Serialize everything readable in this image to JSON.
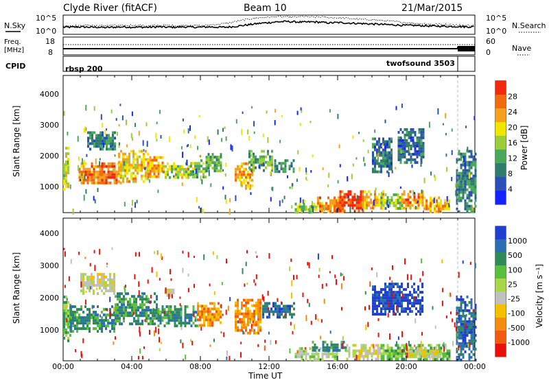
{
  "header": {
    "title": "Clyde River (fitACF)",
    "beam": "Beam 10",
    "date": "21/Mar/2015"
  },
  "chart_data": [
    {
      "type": "line",
      "panel": "noise",
      "left_label": "N.Sky",
      "right_label": "N.Search",
      "ytick_labels": [
        "10^5",
        "10^0"
      ],
      "right_ytick_labels": [
        "10^5",
        "10^0"
      ],
      "x_hours": [
        0,
        0.5,
        1,
        1.5,
        2,
        2.5,
        3,
        3.5,
        4,
        4.5,
        5,
        5.5,
        6,
        6.5,
        7,
        7.5,
        8,
        8.5,
        9,
        9.5,
        10,
        10.5,
        11,
        11.5,
        12,
        12.5,
        13,
        13.5,
        14,
        14.5,
        15,
        15.5,
        16,
        16.5,
        17,
        17.5,
        18,
        18.5,
        19,
        19.5,
        20,
        20.5,
        21,
        21.5,
        22,
        22.5,
        23,
        23.5,
        24
      ],
      "series": [
        {
          "role": "sky",
          "values_log": [
            1.8,
            1.8,
            1.9,
            1.8,
            1.8,
            1.7,
            1.8,
            1.9,
            1.8,
            1.8,
            1.8,
            1.9,
            1.8,
            1.8,
            1.9,
            1.8,
            1.8,
            1.9,
            1.8,
            1.8,
            2.0,
            2.3,
            2.6,
            2.9,
            3.1,
            3.3,
            3.4,
            3.3,
            3.2,
            3.3,
            3.2,
            3.0,
            3.1,
            3.0,
            2.9,
            2.8,
            2.7,
            2.6,
            2.5,
            2.4,
            2.3,
            2.3,
            2.2,
            2.1,
            2.1,
            2.0,
            2.0,
            1.9,
            1.9
          ]
        },
        {
          "role": "search",
          "values_log": [
            2.2,
            2.3,
            2.2,
            2.4,
            2.2,
            2.3,
            2.3,
            2.2,
            2.4,
            2.3,
            2.2,
            2.3,
            2.3,
            2.2,
            2.3,
            2.4,
            2.2,
            2.4,
            2.6,
            2.9,
            3.3,
            3.8,
            4.2,
            4.5,
            4.6,
            4.8,
            4.7,
            4.6,
            4.8,
            4.6,
            4.7,
            4.5,
            4.4,
            4.3,
            4.1,
            4.0,
            3.9,
            3.7,
            3.5,
            3.3,
            3.1,
            2.9,
            2.8,
            2.6,
            2.6,
            2.5,
            2.4,
            2.3,
            2.3
          ]
        }
      ],
      "ylim": [
        0,
        5
      ]
    },
    {
      "type": "line",
      "panel": "frequency",
      "left_label": "Freq.",
      "left_unit": "[MHz]",
      "left_ticks": [
        "18",
        "8"
      ],
      "right_label": "Nave",
      "right_ticks": [
        "60",
        "0"
      ],
      "series": [
        {
          "role": "freq_mhz",
          "x": [
            0,
            22.8,
            22.8,
            24
          ],
          "values": [
            10.2,
            10.2,
            10.8,
            10.8
          ]
        },
        {
          "role": "nave",
          "x": [
            0,
            24
          ],
          "values": [
            30,
            30
          ]
        }
      ]
    },
    {
      "type": "table",
      "panel": "cpid",
      "label": "CPID",
      "segments": [
        {
          "name": "rbsp 200",
          "start": 0,
          "end": 22.8
        },
        {
          "name": "twofsound 3503",
          "start": 22.8,
          "end": 24
        }
      ]
    },
    {
      "type": "heatmap",
      "panel": "power",
      "ylabel": "Slant Range [km]",
      "ylim": [
        180,
        4600
      ],
      "yticks": [
        1000,
        2000,
        3000,
        4000
      ],
      "colorbar": {
        "label": "Power [dB]",
        "ticks": [
          4,
          8,
          12,
          16,
          20,
          24,
          28
        ],
        "colors": [
          "#1423ff",
          "#2a4fb6",
          "#2e7d6b",
          "#4aa85a",
          "#9ccc3a",
          "#f2e600",
          "#f5a020",
          "#f26a10",
          "#f02a0a"
        ]
      },
      "blobs": [
        {
          "t0": 0.0,
          "t1": 0.3,
          "r0": 900,
          "r1": 2300,
          "v": 18
        },
        {
          "t0": 0.9,
          "t1": 2.4,
          "r0": 1100,
          "r1": 1800,
          "v": 24
        },
        {
          "t0": 2.1,
          "t1": 3.4,
          "r0": 1100,
          "r1": 1800,
          "v": 26
        },
        {
          "t0": 3.2,
          "t1": 5.0,
          "r0": 1200,
          "r1": 2200,
          "v": 20
        },
        {
          "t0": 4.9,
          "t1": 5.8,
          "r0": 1300,
          "r1": 2000,
          "v": 22
        },
        {
          "t0": 5.8,
          "t1": 7.4,
          "r0": 1300,
          "r1": 1800,
          "v": 16
        },
        {
          "t0": 7.4,
          "t1": 8.3,
          "r0": 1300,
          "r1": 1900,
          "v": 14
        },
        {
          "t0": 8.3,
          "t1": 9.2,
          "r0": 1500,
          "r1": 2100,
          "v": 12
        },
        {
          "t0": 1.4,
          "t1": 3.0,
          "r0": 2200,
          "r1": 2800,
          "v": 8
        },
        {
          "t0": 10.0,
          "t1": 11.0,
          "r0": 1000,
          "r1": 1800,
          "v": 22
        },
        {
          "t0": 10.8,
          "t1": 12.2,
          "r0": 1500,
          "r1": 2200,
          "v": 12
        },
        {
          "t0": 12.3,
          "t1": 13.5,
          "r0": 1500,
          "r1": 1900,
          "v": 8
        },
        {
          "t0": 13.5,
          "t1": 14.8,
          "r0": 200,
          "r1": 500,
          "v": 14
        },
        {
          "t0": 14.8,
          "t1": 16.3,
          "r0": 200,
          "r1": 700,
          "v": 24
        },
        {
          "t0": 16.1,
          "t1": 17.5,
          "r0": 200,
          "r1": 900,
          "v": 28
        },
        {
          "t0": 17.4,
          "t1": 18.7,
          "r0": 300,
          "r1": 900,
          "v": 22
        },
        {
          "t0": 18.5,
          "t1": 19.8,
          "r0": 300,
          "r1": 800,
          "v": 14
        },
        {
          "t0": 19.7,
          "t1": 21.0,
          "r0": 300,
          "r1": 900,
          "v": 24
        },
        {
          "t0": 21.0,
          "t1": 22.5,
          "r0": 250,
          "r1": 700,
          "v": 22
        },
        {
          "t0": 18.0,
          "t1": 19.2,
          "r0": 1500,
          "r1": 2600,
          "v": 6
        },
        {
          "t0": 19.5,
          "t1": 21.0,
          "r0": 1800,
          "r1": 2900,
          "v": 6
        },
        {
          "t0": 22.9,
          "t1": 24.0,
          "r0": 200,
          "r1": 2200,
          "v": 8
        }
      ]
    },
    {
      "type": "heatmap",
      "panel": "velocity",
      "ylabel": "Slant Range [km]",
      "xlabel": "Time UT",
      "xtick_labels": [
        "00:00",
        "04:00",
        "08:00",
        "12:00",
        "16:00",
        "20:00",
        "00:00"
      ],
      "ylim": [
        180,
        4600
      ],
      "yticks": [
        1000,
        2000,
        3000,
        4000
      ],
      "colorbar": {
        "label": "Velocity [m s⁻¹]",
        "ticks": [
          "1000",
          "500",
          "100",
          "25",
          "-25",
          "-100",
          "-500",
          "-1000"
        ],
        "colors": [
          "#1f3fcf",
          "#2a6fb0",
          "#2e8b57",
          "#5abf3a",
          "#a8d84a",
          "#c0c0c0",
          "#f5c000",
          "#f58c10",
          "#f25a10",
          "#e8100a"
        ]
      },
      "blobs": [
        {
          "t0": 0.0,
          "t1": 0.4,
          "r0": 800,
          "r1": 2200,
          "v": 3
        },
        {
          "t0": 0.4,
          "t1": 3.0,
          "r0": 1100,
          "r1": 1900,
          "v": 2
        },
        {
          "t0": 3.0,
          "t1": 5.5,
          "r0": 1300,
          "r1": 2300,
          "v": 2
        },
        {
          "t0": 5.5,
          "t1": 7.8,
          "r0": 1300,
          "r1": 1900,
          "v": 2
        },
        {
          "t0": 7.8,
          "t1": 9.2,
          "r0": 1300,
          "r1": 2000,
          "v": 7
        },
        {
          "t0": 10.0,
          "t1": 11.5,
          "r0": 1000,
          "r1": 2100,
          "v": 7
        },
        {
          "t0": 1.0,
          "t1": 3.0,
          "r0": 2300,
          "r1": 2900,
          "v": 5
        },
        {
          "t0": 5.9,
          "t1": 6.6,
          "r0": 2200,
          "r1": 2500,
          "v": 5
        },
        {
          "t0": 11.6,
          "t1": 13.5,
          "r0": 1500,
          "r1": 2000,
          "v": 1
        },
        {
          "t0": 13.5,
          "t1": 16.0,
          "r0": 200,
          "r1": 600,
          "v": 4
        },
        {
          "t0": 14.5,
          "t1": 16.5,
          "r0": 500,
          "r1": 800,
          "v": 2
        },
        {
          "t0": 16.5,
          "t1": 18.5,
          "r0": 250,
          "r1": 700,
          "v": 5
        },
        {
          "t0": 18.5,
          "t1": 22.5,
          "r0": 200,
          "r1": 700,
          "v": 3
        },
        {
          "t0": 20.0,
          "t1": 22.0,
          "r0": 300,
          "r1": 600,
          "v": 5
        },
        {
          "t0": 18.0,
          "t1": 21.0,
          "r0": 1600,
          "r1": 2600,
          "v": 0
        },
        {
          "t0": 22.9,
          "t1": 24.0,
          "r0": 200,
          "r1": 2200,
          "v": 1
        }
      ]
    }
  ]
}
